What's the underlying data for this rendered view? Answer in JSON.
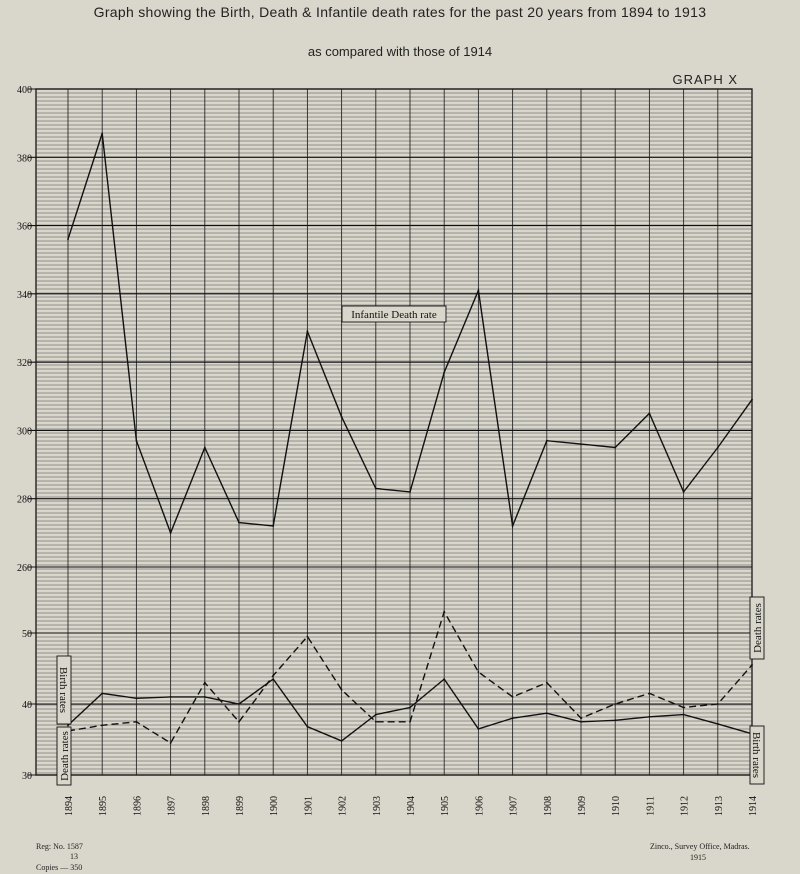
{
  "title": "Graph showing the Birth, Death & Infantile death rates for the past 20 years from 1894 to 1913",
  "subtitle": "as compared with those of 1914",
  "graph_label": "GRAPH X",
  "footer": {
    "reg_line1": "Reg: No. 1587",
    "reg_line2": "13",
    "copies": "Copies — 350",
    "office": "Zinco., Survey Office, Madras.",
    "office_year": "1915"
  },
  "chart_data": [
    {
      "type": "line",
      "title": "",
      "categories": [
        "1894",
        "1895",
        "1896",
        "1897",
        "1898",
        "1899",
        "1900",
        "1901",
        "1902",
        "1903",
        "1904",
        "1905",
        "1906",
        "1907",
        "1908",
        "1909",
        "1910",
        "1911",
        "1912",
        "1913",
        "1914"
      ],
      "upper_axis": {
        "ylim": [
          260,
          400
        ],
        "ticks": [
          260,
          280,
          300,
          320,
          340,
          360,
          380,
          400
        ]
      },
      "series": [
        {
          "name": "Infantile Death rate",
          "axis": "upper",
          "style": "solid",
          "values": [
            356,
            387,
            297,
            270,
            295,
            273,
            272,
            329,
            304,
            283,
            282,
            317,
            341,
            272,
            297,
            296,
            295,
            305,
            282,
            295,
            309
          ]
        }
      ],
      "annotations": [
        {
          "text": "Infantile Death rate",
          "near": "1905"
        }
      ]
    },
    {
      "type": "line",
      "title": "",
      "categories": [
        "1894",
        "1895",
        "1896",
        "1897",
        "1898",
        "1899",
        "1900",
        "1901",
        "1902",
        "1903",
        "1904",
        "1905",
        "1906",
        "1907",
        "1908",
        "1909",
        "1910",
        "1911",
        "1912",
        "1913",
        "1914"
      ],
      "lower_axis": {
        "ylim": [
          30,
          55
        ],
        "ticks": [
          30,
          40,
          50
        ]
      },
      "series": [
        {
          "name": "Birth rates",
          "axis": "lower",
          "style": "solid",
          "values": [
            37,
            41.5,
            40.8,
            41,
            41,
            40,
            43.5,
            36.8,
            34.8,
            38.5,
            39.5,
            43.5,
            36.5,
            38,
            38.7,
            37.5,
            37.7,
            38.2,
            38.5,
            37.2,
            35.8
          ]
        },
        {
          "name": "Death rates",
          "axis": "lower",
          "style": "dashed",
          "values": [
            36.2,
            37,
            37.5,
            34.5,
            43,
            37.5,
            44,
            49.5,
            42,
            37.5,
            37.5,
            53,
            44.5,
            41,
            43,
            38,
            40,
            41.5,
            39.5,
            40,
            45.5
          ]
        }
      ]
    }
  ]
}
